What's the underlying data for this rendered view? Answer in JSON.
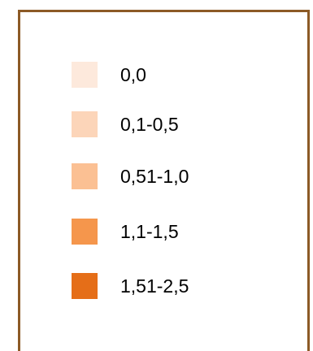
{
  "legend": {
    "items": [
      {
        "label": "0,0",
        "color": "#fde9dc"
      },
      {
        "label": "0,1-0,5",
        "color": "#fcd5b9"
      },
      {
        "label": "0,51-1,0",
        "color": "#fbc093"
      },
      {
        "label": "1,1-1,5",
        "color": "#f5964c"
      },
      {
        "label": "1,51-2,5",
        "color": "#e56e18"
      }
    ],
    "border_color": "#8c5a26"
  }
}
